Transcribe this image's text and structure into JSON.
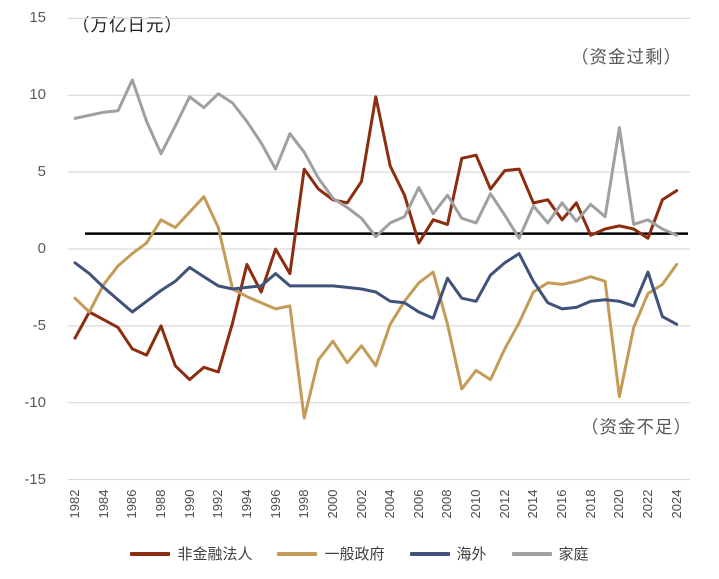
{
  "title": "（万亿日元）",
  "annotations": {
    "surplus": "（资金过剩）",
    "deficit": "（资金不足）"
  },
  "colors": {
    "gridline": "#d9d9d9",
    "reference_line": "#000000",
    "axis_label": "#595959",
    "x_axis_label": "#4d4d4d",
    "annotation_text": "#595959",
    "title_text": "#1f1f1f",
    "legend_text": "#404040"
  },
  "chart_data": {
    "type": "line",
    "title": "（万亿日元）",
    "xlabel": "",
    "ylabel": "",
    "ylim": [
      -15,
      15
    ],
    "yticks": [
      15,
      10,
      5,
      0,
      -5,
      -10,
      -15
    ],
    "grid": true,
    "legend_position": "bottom",
    "reference_line_y": 1.0,
    "x": [
      1982,
      1983,
      1984,
      1985,
      1986,
      1987,
      1988,
      1989,
      1990,
      1991,
      1992,
      1993,
      1994,
      1995,
      1996,
      1997,
      1998,
      1999,
      2000,
      2001,
      2002,
      2003,
      2004,
      2005,
      2006,
      2007,
      2008,
      2009,
      2010,
      2011,
      2012,
      2013,
      2014,
      2015,
      2016,
      2017,
      2018,
      2019,
      2020,
      2021,
      2022,
      2023,
      2024
    ],
    "x_tick_labels": [
      "1982",
      "1984",
      "1986",
      "1988",
      "1990",
      "1992",
      "1994",
      "1996",
      "1998",
      "2000",
      "2002",
      "2004",
      "2006",
      "2008",
      "2010",
      "2012",
      "2014",
      "2016",
      "2018",
      "2020",
      "2022",
      "2024"
    ],
    "series": [
      {
        "id": "nonfinancial-corporations",
        "name": "非金融法人",
        "color": "#8b2d0e",
        "values": [
          -5.8,
          -4.1,
          -4.6,
          -5.1,
          -6.5,
          -6.9,
          -5.0,
          -7.6,
          -8.5,
          -7.7,
          -8.0,
          -4.8,
          -1.0,
          -2.8,
          0.0,
          -1.6,
          5.2,
          3.9,
          3.2,
          3.0,
          4.4,
          9.9,
          5.4,
          3.5,
          0.4,
          1.9,
          1.6,
          5.9,
          6.1,
          3.9,
          5.1,
          5.2,
          3.0,
          3.2,
          1.9,
          3.0,
          0.9,
          1.3,
          1.5,
          1.3,
          0.7,
          3.2,
          3.8
        ]
      },
      {
        "id": "general-government",
        "name": "一般政府",
        "color": "#c49c58",
        "values": [
          -3.2,
          -4.1,
          -2.3,
          -1.1,
          -0.3,
          0.4,
          1.9,
          1.4,
          2.4,
          3.4,
          1.4,
          -2.6,
          -3.1,
          -3.5,
          -3.9,
          -3.7,
          -11.0,
          -7.2,
          -6.0,
          -7.4,
          -6.3,
          -7.6,
          -4.9,
          -3.4,
          -2.2,
          -1.5,
          -4.9,
          -9.1,
          -7.9,
          -8.5,
          -6.5,
          -4.8,
          -2.8,
          -2.2,
          -2.3,
          -2.1,
          -1.8,
          -2.1,
          -9.6,
          -5.1,
          -2.9,
          -2.3,
          -1.0
        ]
      },
      {
        "id": "overseas",
        "name": "海外",
        "color": "#40527a",
        "values": [
          -0.9,
          -1.6,
          -2.5,
          -3.3,
          -4.1,
          -3.4,
          -2.7,
          -2.1,
          -1.2,
          -1.8,
          -2.4,
          -2.6,
          -2.5,
          -2.4,
          -1.6,
          -2.4,
          -2.4,
          -2.4,
          -2.4,
          -2.5,
          -2.6,
          -2.8,
          -3.4,
          -3.5,
          -4.1,
          -4.5,
          -1.9,
          -3.2,
          -3.4,
          -1.7,
          -0.9,
          -0.3,
          -2.1,
          -3.5,
          -3.9,
          -3.8,
          -3.4,
          -3.3,
          -3.4,
          -3.7,
          -1.5,
          -4.4,
          -4.9
        ]
      },
      {
        "id": "households",
        "name": "家庭",
        "color": "#a0a0a0",
        "values": [
          8.5,
          8.7,
          8.9,
          9.0,
          11.0,
          8.3,
          6.2,
          8.0,
          9.9,
          9.2,
          10.1,
          9.5,
          8.3,
          6.9,
          5.2,
          7.5,
          6.3,
          4.6,
          3.3,
          2.7,
          2.0,
          0.8,
          1.7,
          2.1,
          4.0,
          2.3,
          3.5,
          2.0,
          1.7,
          3.6,
          2.2,
          0.7,
          2.8,
          1.7,
          3.0,
          1.8,
          2.9,
          2.1,
          7.9,
          1.6,
          1.9,
          1.3,
          0.9
        ]
      }
    ]
  }
}
